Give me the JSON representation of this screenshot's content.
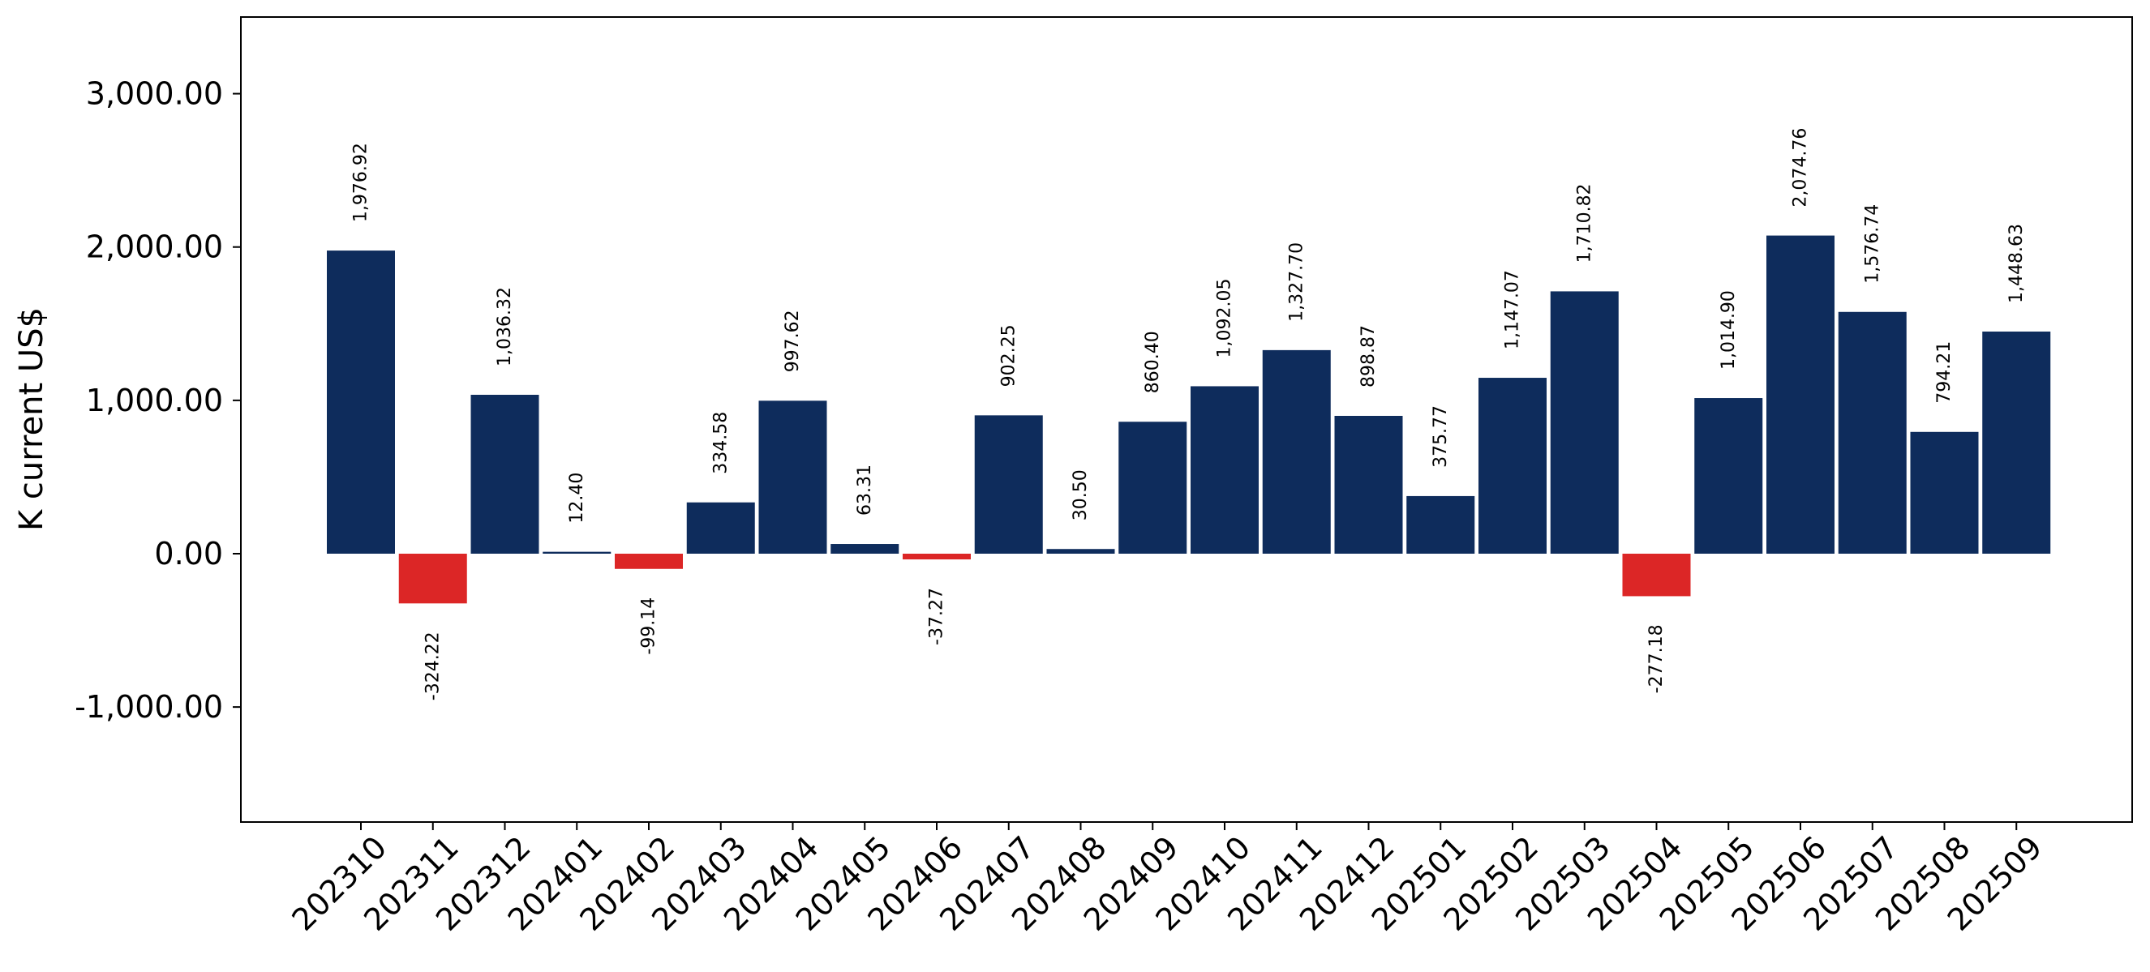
{
  "chart_data": {
    "type": "bar",
    "title": "",
    "xlabel": "",
    "ylabel": "K current US$",
    "ylim": [
      -1750,
      3500
    ],
    "yticks": [
      -1000,
      0,
      1000,
      2000,
      3000
    ],
    "ytick_labels": [
      "-1,000.00",
      "0.00",
      "1,000.00",
      "2,000.00",
      "3,000.00"
    ],
    "grid": false,
    "legend": "none",
    "colors": {
      "positive": "#0e2c5c",
      "negative": "#dc2626",
      "axes": "#000000"
    },
    "categories": [
      "202310",
      "202311",
      "202312",
      "202401",
      "202402",
      "202403",
      "202404",
      "202405",
      "202406",
      "202407",
      "202408",
      "202409",
      "202410",
      "202411",
      "202412",
      "202501",
      "202502",
      "202503",
      "202504",
      "202505",
      "202506",
      "202507",
      "202508",
      "202509"
    ],
    "values": [
      1976.92,
      -324.22,
      1036.32,
      12.4,
      -99.14,
      334.58,
      997.62,
      63.31,
      -37.27,
      902.25,
      30.5,
      860.4,
      1092.05,
      1327.7,
      898.87,
      375.77,
      1147.07,
      1710.82,
      -277.18,
      1014.9,
      2074.76,
      1576.74,
      794.21,
      1448.63
    ],
    "value_labels": [
      "1,976.92",
      "-324.22",
      "1,036.32",
      "12.40",
      "-99.14",
      "334.58",
      "997.62",
      "63.31",
      "-37.27",
      "902.25",
      "30.50",
      "860.40",
      "1,092.05",
      "1,327.70",
      "898.87",
      "375.77",
      "1,147.07",
      "1,710.82",
      "-277.18",
      "1,014.90",
      "2,074.76",
      "1,576.74",
      "794.21",
      "1,448.63"
    ]
  }
}
